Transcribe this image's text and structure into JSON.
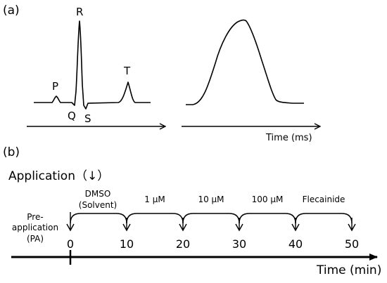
{
  "panel_a": {
    "label": "(a)",
    "wave_labels": {
      "p": "P",
      "q": "Q",
      "r": "R",
      "s": "S",
      "t": "T"
    },
    "time_axis_label": "Time (ms)"
  },
  "panel_b": {
    "label": "(b)",
    "application_title": "Application（↓）",
    "pre_application_line1": "Pre-",
    "pre_application_line2": "application",
    "pre_application_line3": "(PA)",
    "segments": [
      {
        "line1": "DMSO",
        "line2": "(Solvent)"
      },
      {
        "line1": "1 μM",
        "line2": ""
      },
      {
        "line1": "10 μM",
        "line2": ""
      },
      {
        "line1": "100 μM",
        "line2": ""
      },
      {
        "line1": "Flecainide",
        "line2": ""
      }
    ],
    "ticks": [
      "0",
      "10",
      "20",
      "30",
      "40",
      "50"
    ],
    "time_axis_label": "Time (min)"
  }
}
